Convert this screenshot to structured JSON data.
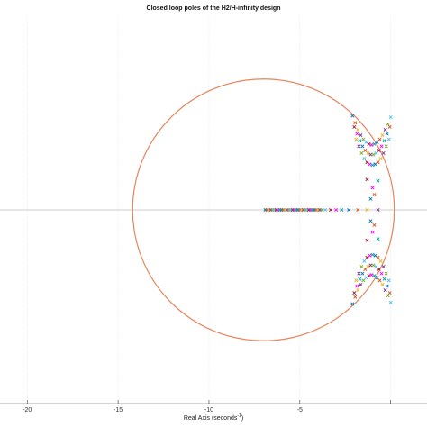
{
  "chart_data": {
    "type": "scatter",
    "title": "Closed loop poles of the H2/H-infinity design",
    "xlabel": "Real Axis (seconds",
    "xlabel_superscript": "-1",
    "xlabel_suffix": ")",
    "ylabel": "",
    "xlim": [
      -21.5,
      2.0
    ],
    "ylim": [
      -7.0,
      7.0
    ],
    "xticks": [
      -20,
      -15,
      -10,
      -5,
      0
    ],
    "xtick_labels": [
      "-20",
      "-15",
      "-10",
      "-5",
      ""
    ],
    "grid": true,
    "circle": {
      "center_x": -7.0,
      "center_y": 0,
      "radius": 7.2,
      "color": "#e8835c"
    },
    "marker": "x",
    "series_colors": [
      "#0072bd",
      "#d95319",
      "#edb120",
      "#7e2f8e",
      "#77ac30",
      "#4dbeee",
      "#a2142f",
      "#ff00ff",
      "#00a0a0"
    ],
    "real_axis_poles": [
      -6.9,
      -6.8,
      -6.7,
      -6.6,
      -6.5,
      -6.4,
      -6.3,
      -6.2,
      -6.1,
      -6.0,
      -5.9,
      -5.8,
      -5.7,
      -5.6,
      -5.5,
      -5.4,
      -5.3,
      -5.2,
      -5.1,
      -5.0,
      -4.9,
      -4.8,
      -4.7,
      -4.6,
      -4.5,
      -4.4,
      -4.3,
      -4.2,
      -4.1,
      -4.0,
      -3.9,
      -3.8,
      -3.6,
      -3.3,
      -3.0,
      -2.7,
      -2.3,
      -1.8,
      -1.3,
      -0.7
    ],
    "complex_poles": [
      {
        "x": -2.1,
        "y": 3.4
      },
      {
        "x": -1.95,
        "y": 3.15
      },
      {
        "x": -1.8,
        "y": 2.9
      },
      {
        "x": -1.65,
        "y": 2.7
      },
      {
        "x": -1.5,
        "y": 2.55
      },
      {
        "x": -1.35,
        "y": 2.45
      },
      {
        "x": -1.2,
        "y": 2.38
      },
      {
        "x": -1.05,
        "y": 2.35
      },
      {
        "x": -0.9,
        "y": 2.38
      },
      {
        "x": -0.75,
        "y": 2.45
      },
      {
        "x": -0.6,
        "y": 2.55
      },
      {
        "x": -0.45,
        "y": 2.7
      },
      {
        "x": -0.3,
        "y": 2.9
      },
      {
        "x": -0.15,
        "y": 3.1
      },
      {
        "x": 0.0,
        "y": 3.35
      },
      {
        "x": -2.0,
        "y": 3.0
      },
      {
        "x": -1.85,
        "y": 2.75
      },
      {
        "x": -1.7,
        "y": 2.5
      },
      {
        "x": -1.55,
        "y": 2.3
      },
      {
        "x": -1.4,
        "y": 2.15
      },
      {
        "x": -1.25,
        "y": 2.05
      },
      {
        "x": -1.1,
        "y": 2.0
      },
      {
        "x": -0.95,
        "y": 2.0
      },
      {
        "x": -0.8,
        "y": 2.05
      },
      {
        "x": -0.65,
        "y": 2.15
      },
      {
        "x": -0.5,
        "y": 2.3
      },
      {
        "x": -0.35,
        "y": 2.5
      },
      {
        "x": -0.2,
        "y": 2.75
      },
      {
        "x": -0.05,
        "y": 3.0
      },
      {
        "x": -1.9,
        "y": 2.55
      },
      {
        "x": -1.75,
        "y": 2.3
      },
      {
        "x": -1.6,
        "y": 2.05
      },
      {
        "x": -1.45,
        "y": 1.85
      },
      {
        "x": -1.3,
        "y": 1.72
      },
      {
        "x": -1.15,
        "y": 1.65
      },
      {
        "x": -1.0,
        "y": 1.62
      },
      {
        "x": -0.85,
        "y": 1.65
      },
      {
        "x": -0.7,
        "y": 1.72
      },
      {
        "x": -0.55,
        "y": 1.85
      },
      {
        "x": -0.4,
        "y": 2.05
      },
      {
        "x": -0.25,
        "y": 2.3
      },
      {
        "x": -0.1,
        "y": 2.55
      },
      {
        "x": -1.3,
        "y": 1.1
      },
      {
        "x": -1.0,
        "y": 0.8
      },
      {
        "x": -0.7,
        "y": 1.05
      },
      {
        "x": -1.1,
        "y": 0.4
      },
      {
        "x": -0.9,
        "y": 0.55
      }
    ]
  }
}
